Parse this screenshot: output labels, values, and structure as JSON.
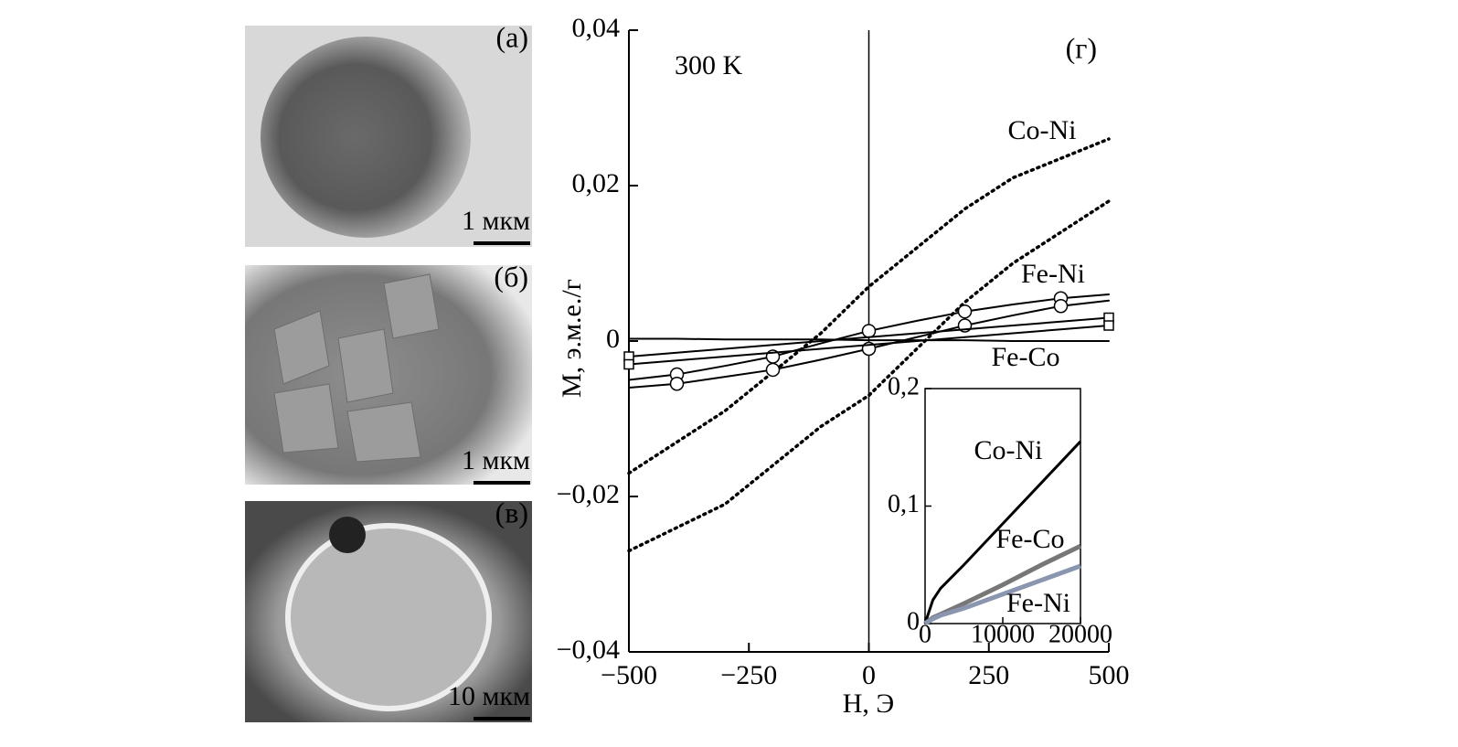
{
  "panels": [
    {
      "label": "(а)",
      "scale": "1 мкм"
    },
    {
      "label": "(б)",
      "scale": "1 мкм"
    },
    {
      "label": "(в)",
      "scale": "10 мкм"
    }
  ],
  "chart_data": [
    {
      "type": "line",
      "panel_label": "(г)",
      "annotation": "300 K",
      "x_label": "H, Э",
      "y_label": "M, э.м.е./г",
      "x": [
        -500,
        -400,
        -300,
        -200,
        -100,
        0,
        100,
        200,
        300,
        400,
        500
      ],
      "xlim": [
        -500,
        500
      ],
      "xticks": [
        {
          "value": -500,
          "label": "−500"
        },
        {
          "value": -250,
          "label": "−250"
        },
        0,
        250,
        500
      ],
      "ylim": [
        -0.04,
        0.04
      ],
      "yticks": [
        {
          "value": -0.04,
          "label": "−0,04"
        },
        {
          "value": -0.02,
          "label": "−0,02"
        },
        0,
        {
          "value": 0.02,
          "label": "0,02"
        },
        {
          "value": 0.04,
          "label": "0,04"
        }
      ],
      "series": [
        {
          "name": "Co-Ni",
          "color": "#000000",
          "style": "dotted",
          "branches": [
            {
              "values": [
                -0.017,
                -0.013,
                -0.009,
                -0.004,
                0.001,
                0.007,
                0.012,
                0.017,
                0.021,
                0.0235,
                0.026
              ]
            },
            {
              "values": [
                -0.027,
                -0.024,
                -0.021,
                -0.016,
                -0.011,
                -0.007,
                -0.001,
                0.005,
                0.01,
                0.014,
                0.018
              ]
            }
          ]
        },
        {
          "name": "Fe-Ni",
          "color": "#000000",
          "style": "solid",
          "marker": "circle",
          "branches": [
            {
              "values": [
                -0.005,
                -0.0043,
                -0.0032,
                -0.002,
                -0.0003,
                0.0013,
                0.0026,
                0.0038,
                0.0047,
                0.0055,
                0.006
              ]
            },
            {
              "values": [
                -0.006,
                -0.0055,
                -0.0046,
                -0.0037,
                -0.0024,
                -0.001,
                0.0005,
                0.002,
                0.0033,
                0.0045,
                0.0052
              ]
            }
          ]
        },
        {
          "name": "Fe-Co",
          "color": "#000000",
          "style": "solid",
          "marker": "square",
          "branches": [
            {
              "values": [
                -0.002,
                -0.0015,
                -0.001,
                -0.0005,
                0,
                0.0005,
                0.001,
                0.0015,
                0.002,
                0.0025,
                0.003
              ]
            },
            {
              "values": [
                -0.003,
                -0.0025,
                -0.002,
                -0.0015,
                -0.001,
                -0.0005,
                0,
                0.0005,
                0.001,
                0.0015,
                0.002
              ]
            },
            {
              "values": [
                0.0003,
                0.0003,
                0.0002,
                0.0002,
                0.0002,
                0.0001,
                0.0001,
                0.0001,
                0,
                0,
                0
              ]
            }
          ]
        }
      ]
    },
    {
      "type": "line",
      "x": [
        0,
        1000,
        2000,
        5000,
        10000,
        15000,
        20000
      ],
      "xlim": [
        0,
        20000
      ],
      "xticks": [
        0,
        10000,
        20000
      ],
      "ylim": [
        0,
        0.2
      ],
      "yticks": [
        0,
        {
          "value": 0.1,
          "label": "0,1"
        },
        {
          "value": 0.2,
          "label": "0,2"
        }
      ],
      "series": [
        {
          "name": "Co-Ni",
          "color": "#000000",
          "values": [
            0,
            0.02,
            0.03,
            0.05,
            0.085,
            0.12,
            0.155
          ]
        },
        {
          "name": "Fe-Co",
          "color": "#777777",
          "values": [
            0,
            0.005,
            0.008,
            0.017,
            0.033,
            0.05,
            0.066
          ]
        },
        {
          "name": "Fe-Ni",
          "color": "#8a96b0",
          "values": [
            0,
            0.004,
            0.007,
            0.013,
            0.025,
            0.037,
            0.049
          ]
        }
      ]
    }
  ]
}
